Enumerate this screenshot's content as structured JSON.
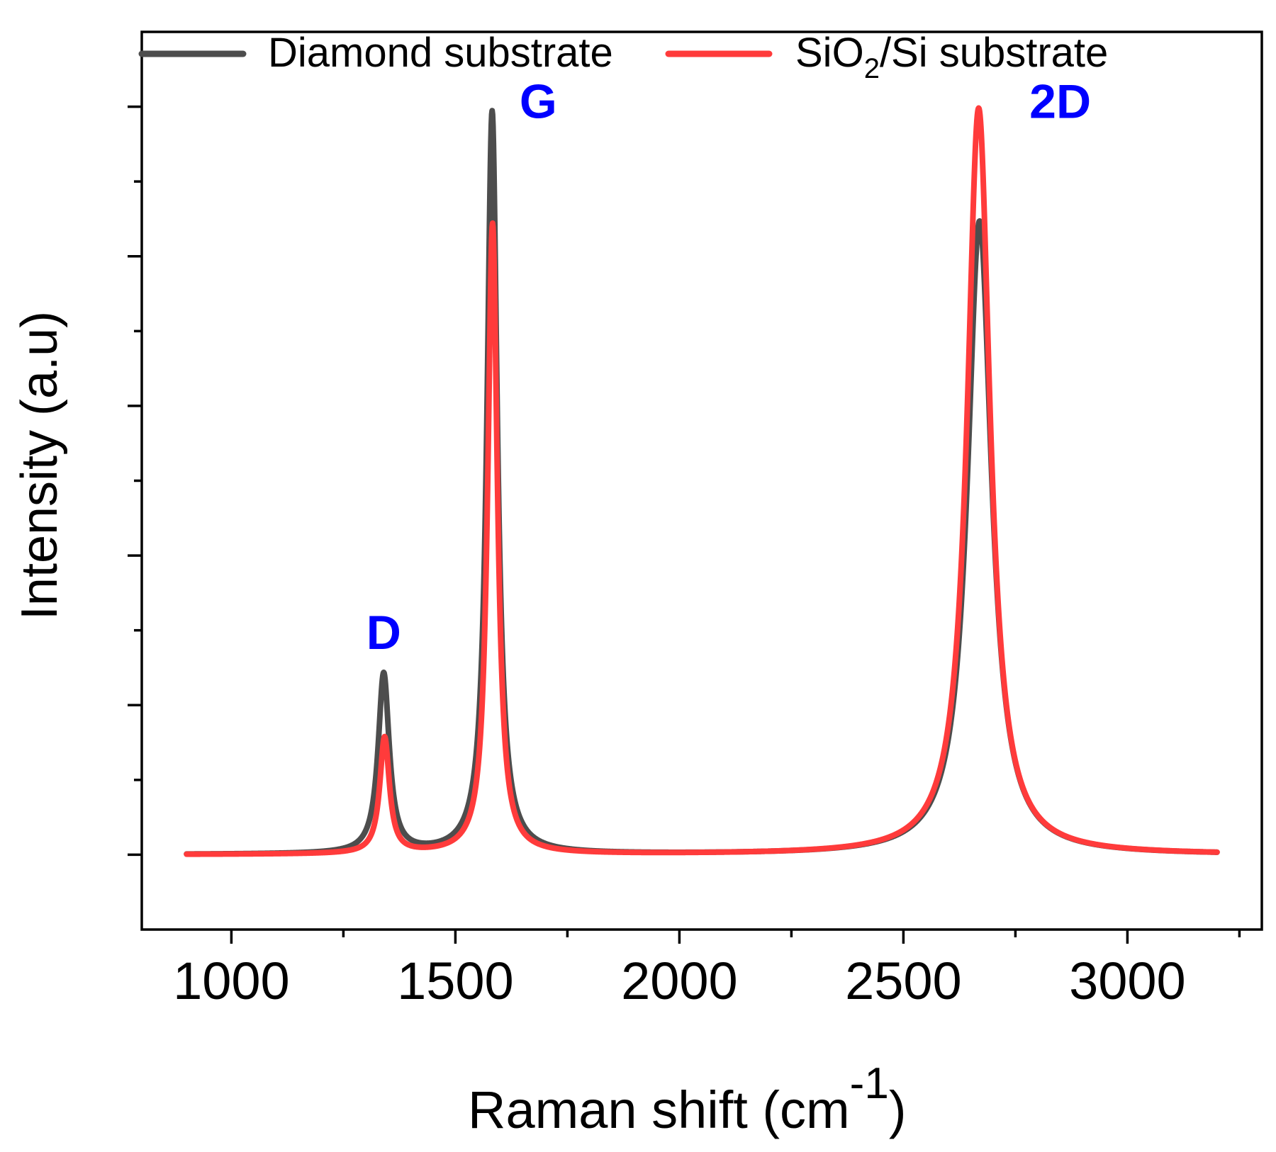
{
  "chart_data": {
    "type": "line",
    "title": "",
    "xlabel": "Raman shift (cm",
    "xlabel_superscript": "-1",
    "xlabel_close": ")",
    "ylabel": "Intensity (a.u)",
    "xlim": [
      800,
      3300
    ],
    "ylim": [
      -0.1,
      1.1
    ],
    "x_ticks": [
      1000,
      1500,
      2000,
      2500,
      3000
    ],
    "x_tick_labels": [
      "1000",
      "1500",
      "2000",
      "2500",
      "3000"
    ],
    "x_minor_ticks": [
      1250,
      1750,
      2250,
      2750,
      3250
    ],
    "y_ticks": [
      0,
      0.1,
      0.2,
      0.3,
      0.4,
      0.5,
      0.6,
      0.7,
      0.8,
      0.9,
      1.0
    ],
    "y_tick_labels_shown": false,
    "grid": false,
    "legend": {
      "placement": "top",
      "entries": [
        {
          "name": "Diamond substrate",
          "color": "#4d4d4d"
        },
        {
          "name_prefix": "SiO",
          "name_sub": "2",
          "name_suffix": "/Si substrate",
          "color": "#ff3b3b"
        }
      ]
    },
    "series": [
      {
        "name": "Diamond substrate",
        "color": "#4d4d4d",
        "x_range": [
          900,
          3200
        ],
        "peaks": [
          {
            "label": "D",
            "center": 1340,
            "height": 0.24,
            "width": 15
          },
          {
            "label": "G",
            "center": 1582,
            "height": 0.993,
            "width": 14
          },
          {
            "label": "2D",
            "center": 2670,
            "height": 0.847,
            "width": 33
          }
        ]
      },
      {
        "name": "SiO2/Si substrate",
        "color": "#ff3b3b",
        "x_range": [
          900,
          3200
        ],
        "peaks": [
          {
            "label": "D",
            "center": 1342,
            "height": 0.155,
            "width": 13
          },
          {
            "label": "G",
            "center": 1583,
            "height": 0.843,
            "width": 13
          },
          {
            "label": "2D",
            "center": 2668,
            "height": 0.998,
            "width": 31
          }
        ]
      }
    ],
    "annotations": [
      {
        "text": "D",
        "x": 1340,
        "y": 0.275,
        "color": "#0000ff"
      },
      {
        "text": "G",
        "x": 1685,
        "y": 0.985,
        "color": "#0000ff"
      },
      {
        "text": "2D",
        "x": 2850,
        "y": 0.985,
        "color": "#0000ff"
      }
    ]
  }
}
